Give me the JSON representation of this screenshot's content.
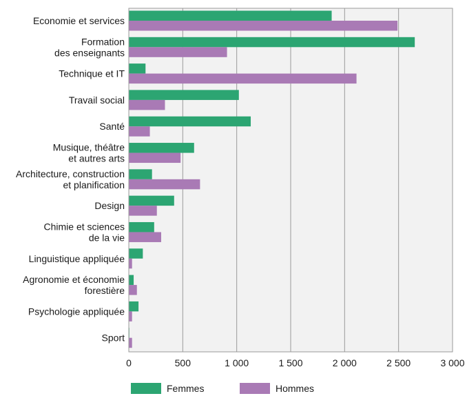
{
  "chart_data": {
    "type": "bar",
    "orientation": "horizontal",
    "categories": [
      [
        "Economie et services"
      ],
      [
        "Formation",
        "des enseignants"
      ],
      [
        "Technique et IT"
      ],
      [
        "Travail social"
      ],
      [
        "Santé"
      ],
      [
        "Musique, théâtre",
        "et autres arts"
      ],
      [
        "Architecture, construction",
        "et planification"
      ],
      [
        "Design"
      ],
      [
        "Chimie et sciences",
        "de la vie"
      ],
      [
        "Linguistique appliquée"
      ],
      [
        "Agronomie et économie",
        "forestière"
      ],
      [
        "Psychologie appliquée"
      ],
      [
        "Sport"
      ]
    ],
    "series": [
      {
        "name": "Femmes",
        "color": "#2ca572",
        "values": [
          1880,
          2650,
          155,
          1020,
          1130,
          605,
          215,
          420,
          235,
          130,
          45,
          90,
          5
        ]
      },
      {
        "name": "Hommes",
        "color": "#a97ab5",
        "values": [
          2490,
          910,
          2110,
          335,
          195,
          480,
          660,
          260,
          300,
          30,
          75,
          30,
          30
        ]
      }
    ],
    "xlim": [
      0,
      3000
    ],
    "xticks": [
      0,
      500,
      1000,
      1500,
      2000,
      2500,
      3000
    ],
    "xtick_labels": [
      "0",
      "500",
      "1 000",
      "1 500",
      "2 000",
      "2 500",
      "3 000"
    ],
    "grid": true,
    "legend_position": "bottom"
  }
}
